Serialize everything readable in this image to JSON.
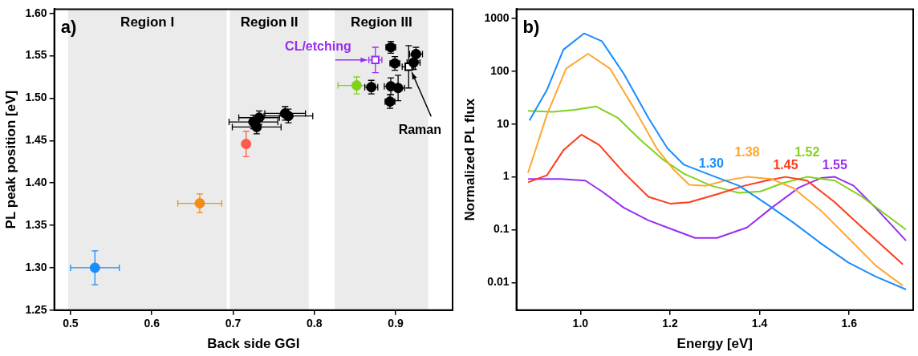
{
  "chart_data": [
    {
      "type": "scatter",
      "xlabel": "Back side GGI",
      "ylabel": "PL peak position [eV]",
      "xlim": [
        0.48,
        0.97
      ],
      "ylim": [
        1.25,
        1.605
      ],
      "xticks": [
        {
          "value": 0.5,
          "label": "0.5"
        },
        {
          "value": 0.6,
          "label": "0.6"
        },
        {
          "value": 0.7,
          "label": "0.7"
        },
        {
          "value": 0.8,
          "label": "0.8"
        },
        {
          "value": 0.9,
          "label": "0.9"
        }
      ],
      "yticks": [
        {
          "value": 1.25,
          "label": "1.25"
        },
        {
          "value": 1.3,
          "label": "1.30"
        },
        {
          "value": 1.35,
          "label": "1.35"
        },
        {
          "value": 1.4,
          "label": "1.40"
        },
        {
          "value": 1.45,
          "label": "1.45"
        },
        {
          "value": 1.5,
          "label": "1.50"
        },
        {
          "value": 1.55,
          "label": "1.55"
        },
        {
          "value": 1.6,
          "label": "1.60"
        }
      ],
      "grid": false,
      "legend": false,
      "marker": "circle",
      "bands": [
        {
          "axis": "x",
          "from": 0.497,
          "to": 0.692,
          "label": "Region I",
          "color": "#ebebeb"
        },
        {
          "axis": "x",
          "from": 0.696,
          "to": 0.793,
          "label": "Region II",
          "color": "#ebebeb"
        },
        {
          "axis": "x",
          "from": 0.825,
          "to": 0.94,
          "label": "Region III",
          "color": "#ebebeb"
        }
      ],
      "series": [
        {
          "color": "#1a8cff",
          "x": [
            0.53
          ],
          "values": [
            1.3
          ],
          "errors": [
            0.02
          ],
          "xerrors": [
            0.03
          ]
        },
        {
          "color": "#f28c1a",
          "x": [
            0.659
          ],
          "values": [
            1.376
          ],
          "errors": [
            0.011
          ],
          "xerrors": [
            0.027
          ]
        },
        {
          "color": "#ff5a4e",
          "x": [
            0.716
          ],
          "values": [
            1.446
          ],
          "errors": [
            0.015
          ],
          "xerrors": [
            null
          ]
        },
        {
          "color": "#7fd31c",
          "x": [
            0.852
          ],
          "values": [
            1.515
          ],
          "errors": [
            0.01
          ],
          "xerrors": [
            0.023
          ]
        },
        {
          "color": "#9a2cf0",
          "marker": "square",
          "x": [
            0.875
          ],
          "values": [
            1.545
          ],
          "errors": [
            0.015
          ],
          "xerrors": [
            0.008
          ]
        },
        {
          "color": "#000000",
          "x": [
            0.725,
            0.732,
            0.729,
            0.764,
            0.768,
            0.87,
            0.894,
            0.899,
            0.894,
            0.903,
            0.893,
            0.925,
            0.922
          ],
          "values": [
            1.472,
            1.477,
            1.466,
            1.482,
            1.479,
            1.513,
            1.56,
            1.541,
            1.514,
            1.512,
            1.496,
            1.552,
            1.542
          ],
          "errors": [
            0.008,
            0.008,
            0.008,
            0.008,
            0.008,
            0.008,
            0.007,
            0.008,
            0.01,
            0.015,
            0.008,
            0.008,
            0.008
          ],
          "xerrors": [
            0.03,
            0.025,
            0.03,
            0.025,
            0.03,
            0.008,
            0.006,
            0.006,
            0.008,
            0.008,
            0.006,
            0.008,
            0.008
          ]
        },
        {
          "color": "#000000",
          "marker": "square",
          "x": [
            0.916
          ],
          "values": [
            1.537
          ],
          "errors": [
            0.025
          ],
          "xerrors": [
            0.008
          ]
        }
      ],
      "annotations": [
        "a)",
        {
          "text": "CL/etching",
          "x": 0.875,
          "y": 1.545
        },
        {
          "text": "Raman",
          "x": 0.916,
          "y": 1.537
        }
      ]
    },
    {
      "type": "line",
      "xlabel": "Energy [eV]",
      "ylabel": "Normalized PL flux",
      "log": true,
      "xlim": [
        0.857,
        1.743
      ],
      "ylim": [
        0.003,
        1500
      ],
      "xticks": [
        {
          "value": 1,
          "label": "1.0"
        },
        {
          "value": 1.2,
          "label": "1.2"
        },
        {
          "value": 1.4,
          "label": "1.4"
        },
        {
          "value": 1.6,
          "label": "1.6"
        }
      ],
      "yticks": [
        0.01,
        0.1,
        1,
        10,
        100,
        1000
      ],
      "grid": false,
      "legend": false,
      "marker": "none",
      "line_style": "solid",
      "series": [
        {
          "color": "#1a8cff",
          "x": [
            0.886,
            0.925,
            0.962,
            1.008,
            1.048,
            1.097,
            1.152,
            1.194,
            1.231,
            1.292,
            1.354,
            1.415,
            1.476,
            1.537,
            1.598,
            1.659,
            1.727
          ],
          "values": [
            11.7,
            44,
            257,
            520,
            370,
            89,
            13,
            3.5,
            1.7,
            1.07,
            0.68,
            0.31,
            0.135,
            0.055,
            0.024,
            0.013,
            0.0074
          ]
        },
        {
          "color": "#ffa632",
          "x": [
            0.883,
            0.901,
            0.925,
            0.968,
            1.017,
            1.066,
            1.121,
            1.17,
            1.207,
            1.243,
            1.28,
            1.323,
            1.372,
            1.427,
            1.476,
            1.537,
            1.598,
            1.659,
            1.72
          ],
          "values": [
            1.2,
            3.5,
            15,
            112,
            215,
            112,
            19,
            3.5,
            1.4,
            0.71,
            0.68,
            0.85,
            1.0,
            0.91,
            0.61,
            0.23,
            0.07,
            0.021,
            0.0087
          ]
        },
        {
          "color": "#ff3a1a",
          "x": [
            0.883,
            0.925,
            0.962,
            1.002,
            1.042,
            1.097,
            1.152,
            1.201,
            1.243,
            1.305,
            1.366,
            1.415,
            1.458,
            1.506,
            1.568,
            1.629,
            1.72
          ],
          "values": [
            0.79,
            1.07,
            3.2,
            6.3,
            4,
            1.2,
            0.42,
            0.31,
            0.33,
            0.47,
            0.68,
            0.85,
            1.0,
            0.85,
            0.33,
            0.11,
            0.022
          ]
        },
        {
          "color": "#7fd31c",
          "x": [
            0.883,
            0.938,
            0.987,
            1.035,
            1.084,
            1.133,
            1.182,
            1.231,
            1.292,
            1.354,
            1.402,
            1.451,
            1.506,
            1.568,
            1.629,
            1.727
          ],
          "values": [
            17.8,
            17,
            18.6,
            21.5,
            13,
            5.1,
            2.2,
            1.15,
            0.68,
            0.5,
            0.53,
            0.76,
            1.0,
            0.85,
            0.42,
            0.1
          ]
        },
        {
          "color": "#9a2cf0",
          "x": [
            0.883,
            0.956,
            1.011,
            1.048,
            1.097,
            1.152,
            1.207,
            1.256,
            1.305,
            1.372,
            1.427,
            1.488,
            1.537,
            1.568,
            1.61,
            1.659,
            1.727
          ],
          "values": [
            0.91,
            0.91,
            0.85,
            0.53,
            0.26,
            0.15,
            0.1,
            0.07,
            0.07,
            0.11,
            0.26,
            0.63,
            0.95,
            1.0,
            0.68,
            0.26,
            0.062
          ]
        }
      ],
      "annotations": [
        "b)",
        {
          "text": "1.30",
          "x": 1.292,
          "y": 1.07
        },
        {
          "text": "1.38",
          "x": 1.372,
          "y": 1.0
        },
        {
          "text": "1.45",
          "x": 1.458,
          "y": 1.0
        },
        {
          "text": "1.52",
          "x": 1.506,
          "y": 1.0
        },
        {
          "text": "1.55",
          "x": 1.568,
          "y": 1.0
        }
      ]
    }
  ]
}
